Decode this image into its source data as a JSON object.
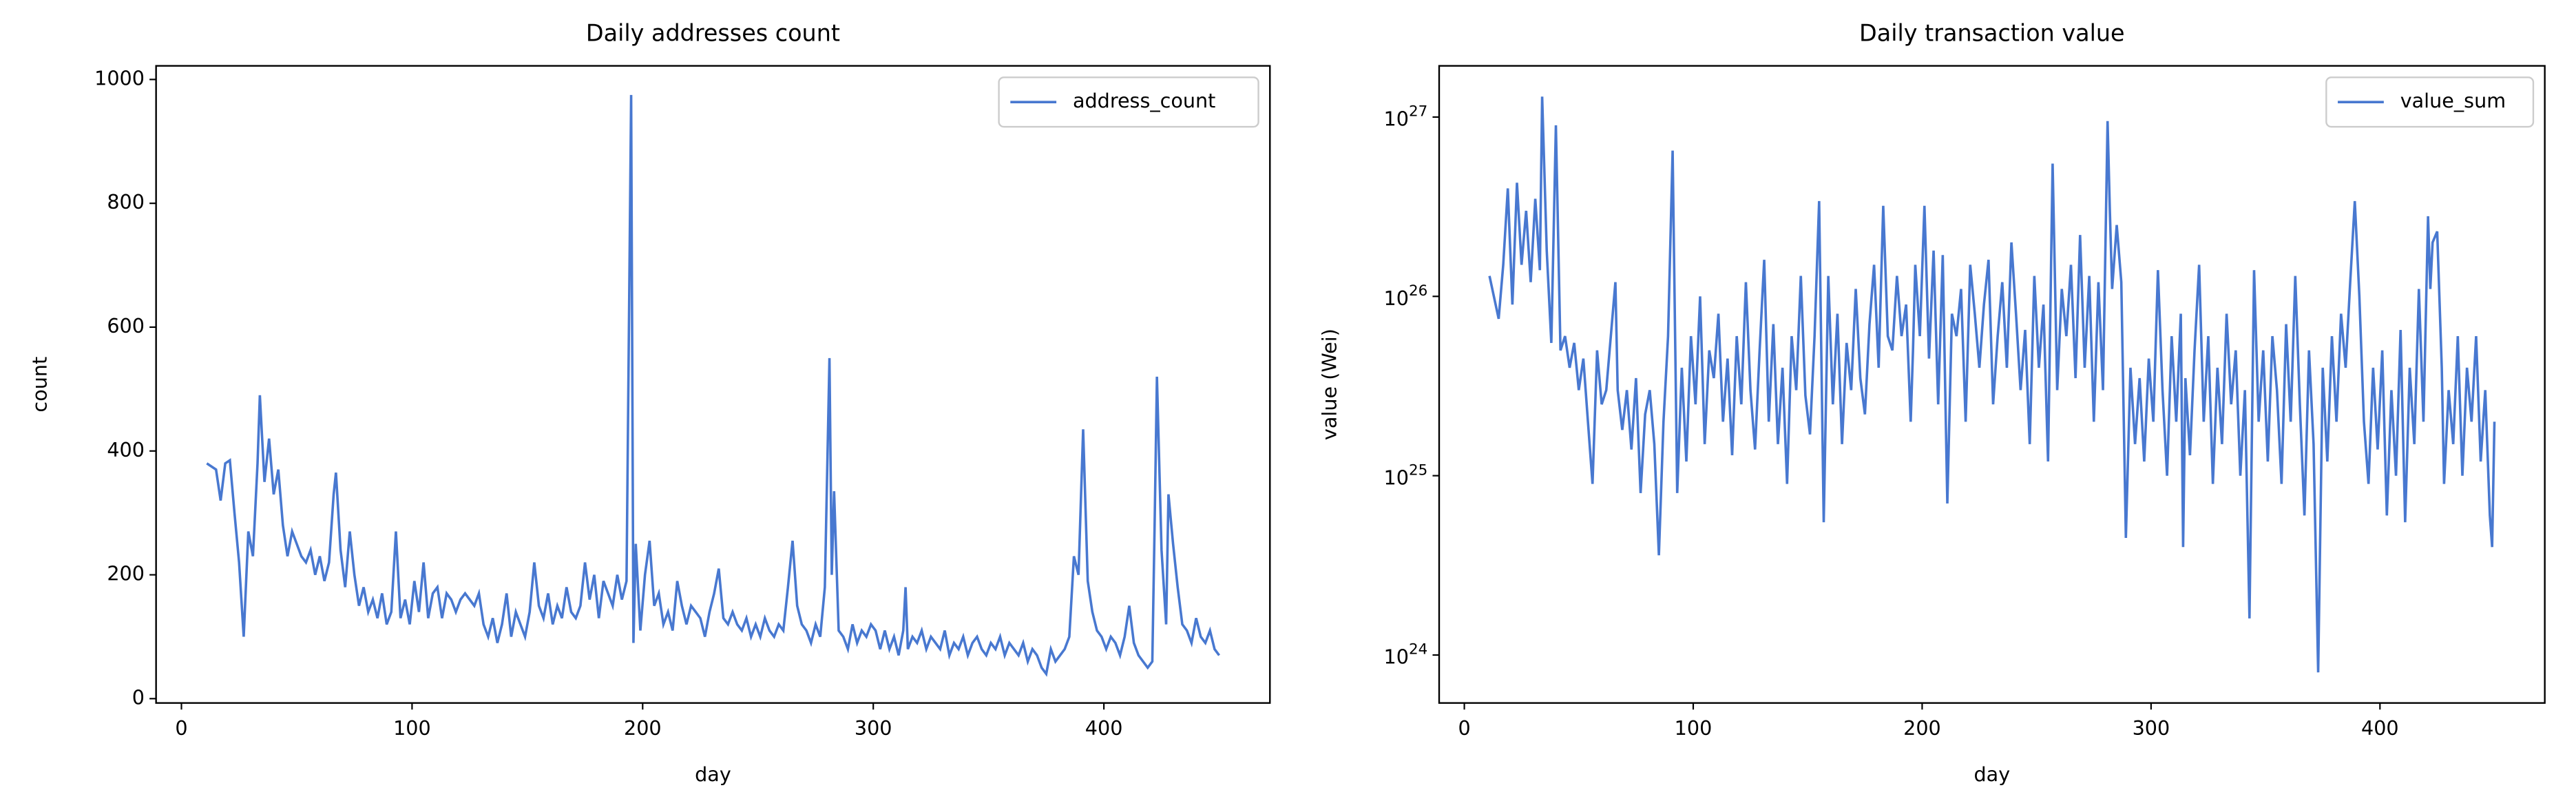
{
  "chart_data": [
    {
      "type": "line",
      "title": "Daily addresses count",
      "xlabel": "day",
      "ylabel": "count",
      "x": [
        11,
        15,
        17,
        19,
        21,
        23,
        25,
        27,
        29,
        31,
        33,
        34,
        36,
        38,
        40,
        42,
        44,
        46,
        48,
        50,
        52,
        54,
        56,
        58,
        60,
        62,
        64,
        66,
        67,
        69,
        71,
        73,
        75,
        77,
        79,
        81,
        83,
        85,
        87,
        89,
        91,
        93,
        95,
        97,
        99,
        101,
        103,
        105,
        107,
        109,
        111,
        113,
        115,
        117,
        119,
        121,
        123,
        125,
        127,
        129,
        131,
        133,
        135,
        137,
        139,
        141,
        143,
        145,
        147,
        149,
        151,
        153,
        155,
        157,
        159,
        161,
        163,
        165,
        167,
        169,
        171,
        173,
        175,
        177,
        179,
        181,
        183,
        185,
        187,
        189,
        191,
        193,
        195,
        196,
        197,
        199,
        201,
        203,
        205,
        207,
        209,
        211,
        213,
        215,
        217,
        219,
        221,
        223,
        225,
        227,
        229,
        231,
        233,
        235,
        237,
        239,
        241,
        243,
        245,
        247,
        249,
        251,
        253,
        255,
        257,
        259,
        261,
        263,
        265,
        267,
        269,
        271,
        273,
        275,
        277,
        279,
        281,
        282,
        283,
        285,
        287,
        289,
        291,
        293,
        295,
        297,
        299,
        301,
        303,
        305,
        307,
        309,
        311,
        313,
        314,
        315,
        317,
        319,
        321,
        323,
        325,
        327,
        329,
        331,
        333,
        335,
        337,
        339,
        341,
        343,
        345,
        347,
        349,
        351,
        353,
        355,
        357,
        359,
        361,
        363,
        365,
        367,
        369,
        371,
        373,
        375,
        377,
        379,
        381,
        383,
        385,
        387,
        389,
        391,
        393,
        395,
        397,
        399,
        401,
        403,
        405,
        407,
        409,
        411,
        413,
        415,
        417,
        419,
        421,
        422,
        423,
        425,
        427,
        428,
        430,
        432,
        434,
        436,
        438,
        440,
        442,
        444,
        446,
        448,
        449,
        450
      ],
      "series": [
        {
          "name": "address_count",
          "color": "#4878d0",
          "values": [
            380,
            370,
            320,
            380,
            385,
            300,
            220,
            100,
            270,
            230,
            380,
            490,
            350,
            420,
            330,
            370,
            280,
            230,
            270,
            250,
            230,
            220,
            240,
            200,
            230,
            190,
            220,
            330,
            365,
            240,
            180,
            270,
            200,
            150,
            180,
            140,
            160,
            130,
            170,
            120,
            140,
            270,
            130,
            160,
            120,
            190,
            140,
            220,
            130,
            170,
            180,
            130,
            170,
            160,
            140,
            160,
            170,
            160,
            150,
            170,
            120,
            100,
            130,
            90,
            120,
            170,
            100,
            140,
            120,
            100,
            140,
            220,
            150,
            130,
            170,
            120,
            150,
            130,
            180,
            140,
            130,
            150,
            220,
            160,
            200,
            130,
            190,
            170,
            150,
            200,
            160,
            190,
            975,
            90,
            250,
            110,
            200,
            255,
            150,
            170,
            120,
            140,
            110,
            190,
            150,
            120,
            150,
            140,
            130,
            100,
            140,
            170,
            210,
            130,
            120,
            140,
            120,
            110,
            130,
            100,
            120,
            100,
            130,
            110,
            100,
            120,
            110,
            180,
            255,
            150,
            120,
            110,
            90,
            120,
            100,
            180,
            550,
            200,
            335,
            110,
            100,
            80,
            120,
            90,
            110,
            100,
            120,
            110,
            80,
            110,
            80,
            100,
            70,
            110,
            180,
            80,
            100,
            90,
            110,
            80,
            100,
            90,
            80,
            110,
            70,
            90,
            80,
            100,
            70,
            90,
            100,
            80,
            70,
            90,
            80,
            100,
            70,
            90,
            80,
            70,
            90,
            60,
            80,
            70,
            50,
            40,
            80,
            60,
            70,
            80,
            100,
            230,
            200,
            435,
            190,
            140,
            110,
            100,
            80,
            100,
            90,
            70,
            100,
            150,
            90,
            70,
            60,
            50,
            60,
            280,
            520,
            240,
            120,
            330,
            250,
            180,
            120,
            110,
            90,
            130,
            100,
            90,
            110,
            80,
            75,
            70
          ]
        }
      ],
      "xlim": [
        -11,
        472
      ],
      "xticks": [
        0,
        100,
        200,
        300,
        400
      ],
      "ylim": [
        -7,
        1022
      ],
      "yticks": [
        0,
        200,
        400,
        600,
        800,
        1000
      ],
      "legend": "upper right"
    },
    {
      "type": "line",
      "title": "Daily transaction value",
      "xlabel": "day",
      "ylabel": "value (Wei)",
      "yscale": "log",
      "x": [
        11,
        15,
        17,
        19,
        21,
        23,
        25,
        27,
        29,
        31,
        33,
        34,
        36,
        38,
        40,
        42,
        44,
        46,
        48,
        50,
        52,
        54,
        56,
        58,
        60,
        62,
        64,
        66,
        67,
        69,
        71,
        73,
        75,
        77,
        79,
        81,
        83,
        85,
        87,
        89,
        91,
        93,
        95,
        97,
        99,
        101,
        103,
        105,
        107,
        109,
        111,
        113,
        115,
        117,
        119,
        121,
        123,
        125,
        127,
        129,
        131,
        133,
        135,
        137,
        139,
        141,
        143,
        145,
        147,
        149,
        151,
        153,
        155,
        157,
        159,
        161,
        163,
        165,
        167,
        169,
        171,
        173,
        175,
        177,
        179,
        181,
        183,
        185,
        187,
        189,
        191,
        193,
        195,
        196,
        197,
        199,
        201,
        203,
        205,
        207,
        209,
        211,
        213,
        215,
        217,
        219,
        221,
        223,
        225,
        227,
        229,
        231,
        233,
        235,
        237,
        239,
        241,
        243,
        245,
        247,
        249,
        251,
        253,
        255,
        257,
        259,
        261,
        263,
        265,
        267,
        269,
        271,
        273,
        275,
        277,
        279,
        281,
        282,
        283,
        285,
        287,
        289,
        291,
        293,
        295,
        297,
        299,
        301,
        303,
        305,
        307,
        309,
        311,
        313,
        314,
        315,
        317,
        319,
        321,
        323,
        325,
        327,
        329,
        331,
        333,
        335,
        337,
        339,
        341,
        343,
        345,
        347,
        349,
        351,
        353,
        355,
        357,
        359,
        361,
        363,
        365,
        367,
        369,
        371,
        373,
        375,
        377,
        379,
        381,
        383,
        385,
        387,
        389,
        391,
        393,
        395,
        397,
        399,
        401,
        403,
        405,
        407,
        409,
        411,
        413,
        415,
        417,
        419,
        421,
        422,
        423,
        425,
        427,
        428,
        430,
        432,
        434,
        436,
        438,
        440,
        442,
        444,
        446,
        448,
        449,
        450
      ],
      "series": [
        {
          "name": "value_sum",
          "color": "#4878d0",
          "values": [
            1.3e+26,
            7.5e+25,
            1.5e+26,
            4e+26,
            9e+25,
            4.3e+26,
            1.5e+26,
            3e+26,
            1.2e+26,
            3.5e+26,
            1.4e+26,
            1.3e+27,
            1.8e+26,
            5.5e+25,
            9e+26,
            5e+25,
            6e+25,
            4e+25,
            5.5e+25,
            3e+25,
            4.5e+25,
            2e+25,
            9e+24,
            5e+25,
            2.5e+25,
            3e+25,
            6e+25,
            1.2e+26,
            3e+25,
            1.8e+25,
            3e+25,
            1.4e+25,
            3.5e+25,
            8e+24,
            2.2e+25,
            3e+25,
            1.5e+25,
            3.6e+24,
            2e+25,
            6e+25,
            6.5e+26,
            8e+24,
            4e+25,
            1.2e+25,
            6e+25,
            2.5e+25,
            1e+26,
            1.5e+25,
            5e+25,
            3.5e+25,
            8e+25,
            2e+25,
            4.5e+25,
            1.3e+25,
            6e+25,
            2.5e+25,
            1.2e+26,
            3e+25,
            1.4e+25,
            5e+25,
            1.6e+26,
            2e+25,
            7e+25,
            1.5e+25,
            4e+25,
            9e+24,
            6e+25,
            3e+25,
            1.3e+26,
            2.8e+25,
            1.7e+25,
            6e+25,
            3.4e+26,
            5.5e+24,
            1.3e+26,
            2.5e+25,
            8e+25,
            1.5e+25,
            5.5e+25,
            3e+25,
            1.1e+26,
            3.5e+25,
            2.2e+25,
            7e+25,
            1.5e+26,
            4e+25,
            3.2e+26,
            6e+25,
            5e+25,
            1.3e+26,
            6e+25,
            9e+25,
            2e+25,
            5e+25,
            1.5e+26,
            6e+25,
            3.2e+26,
            4.5e+25,
            1.8e+26,
            2.5e+25,
            1.7e+26,
            7e+24,
            8e+25,
            6e+25,
            1.1e+26,
            2e+25,
            1.5e+26,
            8e+25,
            4e+25,
            9e+25,
            1.6e+26,
            2.5e+25,
            6e+25,
            1.2e+26,
            4e+25,
            2e+26,
            8e+25,
            3e+25,
            6.5e+25,
            1.5e+25,
            1.3e+26,
            4e+25,
            9e+25,
            1.2e+25,
            5.5e+26,
            3e+25,
            1.1e+26,
            6e+25,
            1.5e+26,
            3.5e+25,
            2.2e+26,
            4e+25,
            1.3e+26,
            2e+25,
            1.2e+26,
            3e+25,
            9.5e+26,
            3e+26,
            1.1e+26,
            2.5e+26,
            1.2e+26,
            4.5e+24,
            4e+25,
            1.5e+25,
            3.5e+25,
            1.2e+25,
            4.5e+25,
            2e+25,
            1.4e+26,
            3e+25,
            1e+25,
            6e+25,
            2e+25,
            8e+25,
            4e+24,
            3.5e+25,
            1.3e+25,
            5e+25,
            1.5e+26,
            2e+25,
            6e+25,
            9e+24,
            4e+25,
            1.5e+25,
            8e+25,
            2.5e+25,
            5e+25,
            1e+25,
            3e+25,
            1.6e+24,
            1.4e+26,
            2e+25,
            5e+25,
            1.2e+25,
            6e+25,
            3e+25,
            9e+24,
            7e+25,
            2e+25,
            1.3e+26,
            2.5e+25,
            6e+24,
            5e+25,
            1.5e+25,
            8e+23,
            4e+25,
            1.2e+25,
            6e+25,
            2e+25,
            8e+25,
            4e+25,
            1.2e+26,
            3.4e+26,
            1e+26,
            2e+25,
            9e+24,
            4e+25,
            1.4e+25,
            5e+25,
            6e+24,
            3e+25,
            1e+25,
            6.5e+25,
            5.5e+24,
            4e+25,
            1.5e+25,
            1.1e+26,
            2e+25,
            2.8e+26,
            1.1e+26,
            2e+26,
            2.3e+26,
            4e+25,
            9e+24,
            3e+25,
            1.5e+25,
            6e+25,
            1e+25,
            4e+25,
            2e+25,
            6e+25,
            1.2e+25,
            3e+25,
            6e+24,
            4e+24,
            2e+25
          ]
        }
      ],
      "xlim": [
        -11,
        472
      ],
      "xticks": [
        0,
        100,
        200,
        300,
        400
      ],
      "ylim": [
        5.4e+23,
        1.93e+27
      ],
      "yticks": [
        {
          "value": 1e+24,
          "label": "10^24"
        },
        {
          "value": 1e+25,
          "label": "10^25"
        },
        {
          "value": 1e+26,
          "label": "10^26"
        },
        {
          "value": 1e+27,
          "label": "10^27"
        }
      ],
      "legend": "upper right"
    }
  ]
}
